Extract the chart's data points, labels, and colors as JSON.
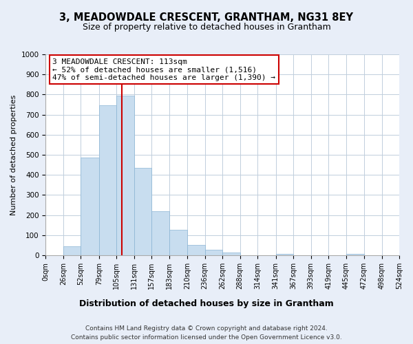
{
  "title": "3, MEADOWDALE CRESCENT, GRANTHAM, NG31 8EY",
  "subtitle": "Size of property relative to detached houses in Grantham",
  "xlabel": "Distribution of detached houses by size in Grantham",
  "ylabel": "Number of detached properties",
  "bar_edges": [
    0,
    26,
    52,
    79,
    105,
    131,
    157,
    183,
    210,
    236,
    262,
    288,
    314,
    341,
    367,
    393,
    419,
    445,
    472,
    498,
    524
  ],
  "bar_heights": [
    0,
    43,
    487,
    748,
    793,
    435,
    220,
    125,
    52,
    28,
    15,
    0,
    0,
    7,
    0,
    0,
    0,
    7,
    0,
    0,
    0
  ],
  "bar_color": "#c8ddef",
  "bar_edge_color": "#8ab4d4",
  "vline_x": 113,
  "vline_color": "#cc0000",
  "annotation_text": "3 MEADOWDALE CRESCENT: 113sqm\n← 52% of detached houses are smaller (1,516)\n47% of semi-detached houses are larger (1,390) →",
  "annotation_box_facecolor": "#ffffff",
  "annotation_box_edgecolor": "#cc0000",
  "ylim": [
    0,
    1000
  ],
  "yticks": [
    0,
    100,
    200,
    300,
    400,
    500,
    600,
    700,
    800,
    900,
    1000
  ],
  "tick_labels": [
    "0sqm",
    "26sqm",
    "52sqm",
    "79sqm",
    "105sqm",
    "131sqm",
    "157sqm",
    "183sqm",
    "210sqm",
    "236sqm",
    "262sqm",
    "288sqm",
    "314sqm",
    "341sqm",
    "367sqm",
    "393sqm",
    "419sqm",
    "445sqm",
    "472sqm",
    "498sqm",
    "524sqm"
  ],
  "footer1": "Contains HM Land Registry data © Crown copyright and database right 2024.",
  "footer2": "Contains public sector information licensed under the Open Government Licence v3.0.",
  "bg_color": "#e8eef8",
  "plot_bg_color": "#ffffff",
  "grid_color": "#c0cedc",
  "title_fontsize": 10.5,
  "subtitle_fontsize": 9,
  "xlabel_fontsize": 9,
  "ylabel_fontsize": 8,
  "tick_fontsize": 7,
  "ytick_fontsize": 7.5,
  "annotation_fontsize": 8,
  "footer_fontsize": 6.5
}
